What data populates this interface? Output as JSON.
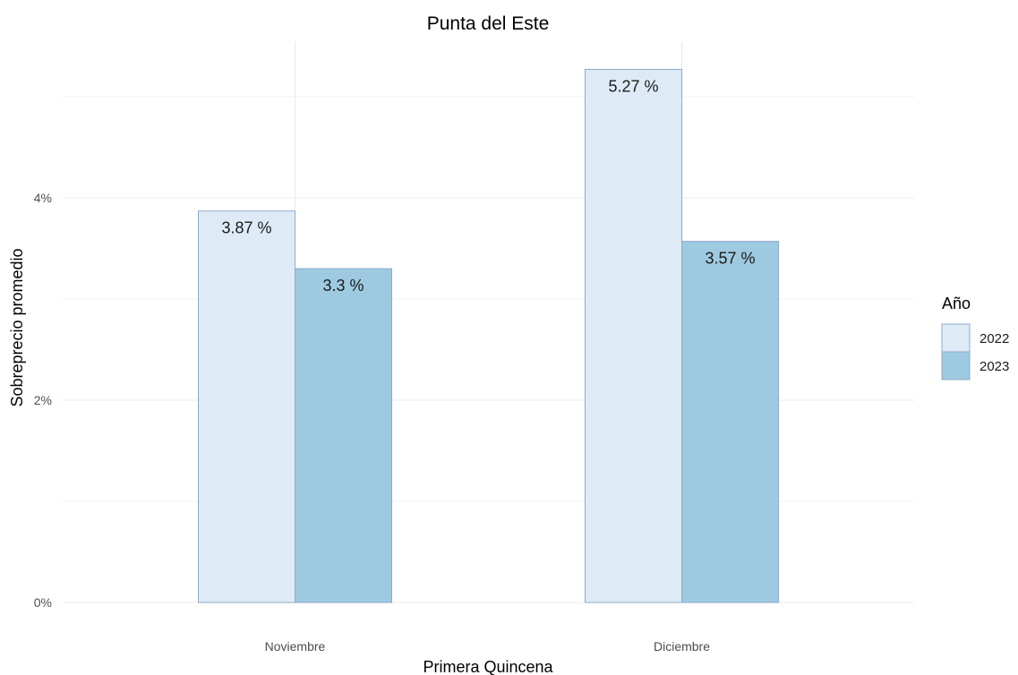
{
  "chart_data": {
    "type": "bar",
    "title": "Punta del Este",
    "xlabel": "Primera Quincena",
    "ylabel": "Sobreprecio promedio",
    "categories": [
      "Noviembre",
      "Diciembre"
    ],
    "series": [
      {
        "name": "2022",
        "values": [
          3.87,
          5.27
        ],
        "labels": [
          "3.87 %",
          "5.27 %"
        ],
        "color": "#deebf7"
      },
      {
        "name": "2023",
        "values": [
          3.3,
          3.57
        ],
        "labels": [
          "3.3 %",
          "3.57 %"
        ],
        "color": "#9ecae1"
      }
    ],
    "bar_border_color": "#8fa9c6",
    "ylim": [
      0,
      5.55
    ],
    "yticks": [
      0,
      2,
      4
    ],
    "ytick_labels": [
      "0%",
      "2%",
      "4%"
    ],
    "grid": true,
    "legend": {
      "title": "Año",
      "position": "right"
    }
  }
}
